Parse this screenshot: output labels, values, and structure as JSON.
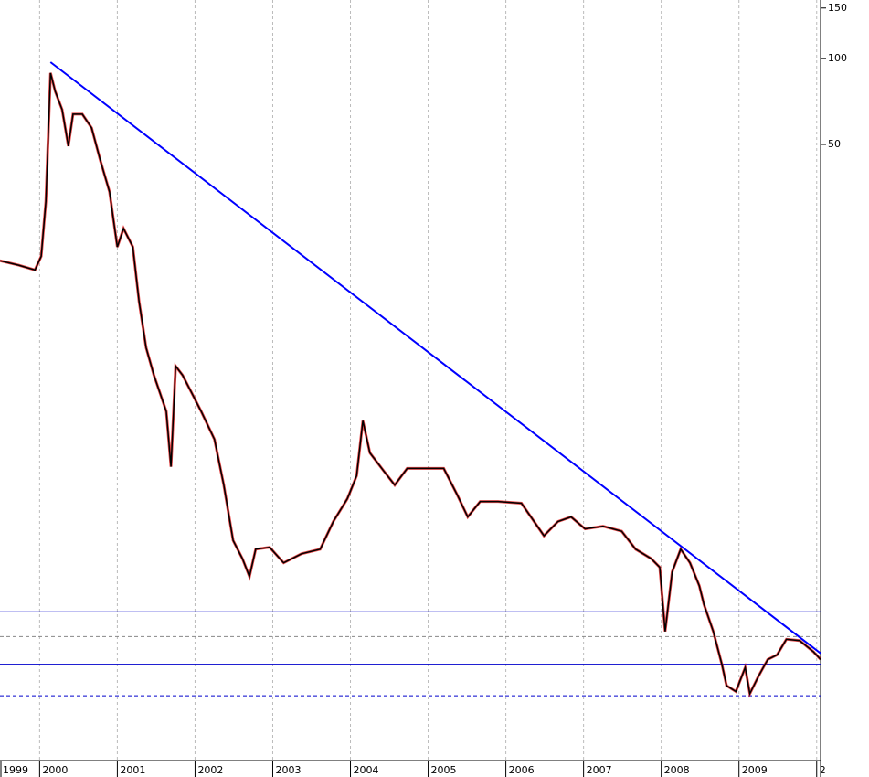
{
  "chart_data": {
    "type": "line",
    "log_scale": true,
    "grid": true,
    "x": [
      1999.49,
      1999.73,
      1999.94,
      2000.02,
      2000.08,
      2000.14,
      2000.2,
      2000.29,
      2000.37,
      2000.43,
      2000.55,
      2000.67,
      2000.78,
      2000.9,
      2001.0,
      2001.08,
      2001.2,
      2001.28,
      2001.37,
      2001.47,
      2001.55,
      2001.63,
      2001.69,
      2001.75,
      2001.84,
      2001.96,
      2002.08,
      2002.25,
      2002.37,
      2002.49,
      2002.61,
      2002.7,
      2002.78,
      2002.96,
      2003.14,
      2003.37,
      2003.61,
      2003.78,
      2003.96,
      2004.08,
      2004.16,
      2004.25,
      2004.43,
      2004.57,
      2004.73,
      2004.96,
      2005.2,
      2005.37,
      2005.51,
      2005.67,
      2005.9,
      2006.2,
      2006.49,
      2006.67,
      2006.84,
      2007.02,
      2007.25,
      2007.49,
      2007.67,
      2007.87,
      2007.98,
      2008.05,
      2008.14,
      2008.25,
      2008.37,
      2008.49,
      2008.55,
      2008.67,
      2008.78,
      2008.84,
      2008.96,
      2009.08,
      2009.14,
      2009.25,
      2009.37,
      2009.49,
      2009.61,
      2009.78,
      2009.96,
      2010.05
    ],
    "series": [
      {
        "color": "#000000",
        "values": [
          19.6,
          18.9,
          18.2,
          20.3,
          31.6,
          88.9,
          76.7,
          66.2,
          49.3,
          63.8,
          63.8,
          57.1,
          44.1,
          34.1,
          21.9,
          25.4,
          21.9,
          14.1,
          9.73,
          7.8,
          6.74,
          5.82,
          3.73,
          8.39,
          7.8,
          6.74,
          5.82,
          4.65,
          3.22,
          2.06,
          1.78,
          1.54,
          1.92,
          1.95,
          1.72,
          1.85,
          1.92,
          2.4,
          2.88,
          3.47,
          5.4,
          4.17,
          3.6,
          3.22,
          3.68,
          3.68,
          3.68,
          2.99,
          2.49,
          2.82,
          2.82,
          2.78,
          2.14,
          2.4,
          2.49,
          2.26,
          2.31,
          2.22,
          1.92,
          1.78,
          1.66,
          0.99,
          1.6,
          1.92,
          1.72,
          1.43,
          1.23,
          0.99,
          0.76,
          0.64,
          0.61,
          0.74,
          0.6,
          0.69,
          0.79,
          0.82,
          0.93,
          0.92,
          0.84,
          0.79
        ]
      }
    ],
    "xlim": [
      1999.49,
      2010.05
    ],
    "xticks": [
      1999,
      2000,
      2001,
      2002,
      2003,
      2004,
      2005,
      2006,
      2007,
      2008,
      2009,
      {
        "value": 2010,
        "label": "2"
      }
    ],
    "ylim": [
      0.35,
      160
    ],
    "yticks": [
      150,
      100,
      50
    ],
    "trendline": {
      "from": [
        2000.14,
        97
      ],
      "to": [
        2010.05,
        0.83
      ],
      "color": "#0000ff"
    },
    "levels": [
      {
        "value": 1.16,
        "color": "#0000cc",
        "dashed": false
      },
      {
        "value": 0.95,
        "color": "#888888",
        "dashed": true
      },
      {
        "value": 0.76,
        "color": "#0000cc",
        "dashed": false
      },
      {
        "value": 0.59,
        "color": "#0000cc",
        "dashed": true
      }
    ]
  }
}
